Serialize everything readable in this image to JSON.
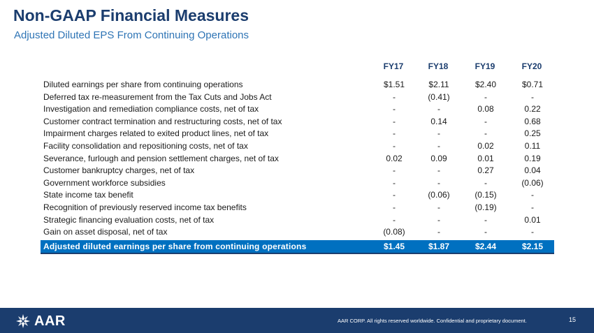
{
  "header": {
    "title": "Non-GAAP Financial Measures",
    "subtitle": "Adjusted Diluted EPS From Continuing Operations"
  },
  "table": {
    "columns": [
      "FY17",
      "FY18",
      "FY19",
      "FY20"
    ],
    "rows": [
      {
        "label": "Diluted earnings per share from continuing operations",
        "values": [
          "$1.51",
          "$2.11",
          "$2.40",
          "$0.71"
        ]
      },
      {
        "label": "Deferred tax re-measurement from the Tax Cuts and Jobs Act",
        "values": [
          "-",
          "(0.41)",
          "-",
          "-"
        ]
      },
      {
        "label": "Investigation and remediation compliance costs, net of tax",
        "values": [
          "-",
          "-",
          "0.08",
          "0.22"
        ]
      },
      {
        "label": "Customer contract termination and restructuring costs, net of tax",
        "values": [
          "-",
          "0.14",
          "-",
          "0.68"
        ]
      },
      {
        "label": "Impairment charges related to exited product lines, net of tax",
        "values": [
          "-",
          "-",
          "-",
          "0.25"
        ]
      },
      {
        "label": "Facility consolidation and repositioning costs, net of tax",
        "values": [
          "-",
          "-",
          "0.02",
          "0.11"
        ]
      },
      {
        "label": "Severance, furlough and pension settlement charges, net of tax",
        "values": [
          "0.02",
          "0.09",
          "0.01",
          "0.19"
        ]
      },
      {
        "label": "Customer bankruptcy charges, net of tax",
        "values": [
          "-",
          "-",
          "0.27",
          "0.04"
        ]
      },
      {
        "label": "Government workforce subsidies",
        "values": [
          "-",
          "-",
          "-",
          "(0.06)"
        ]
      },
      {
        "label": "State income tax benefit",
        "values": [
          "-",
          "(0.06)",
          "(0.15)",
          "-"
        ]
      },
      {
        "label": "Recognition of previously reserved income tax benefits",
        "values": [
          "-",
          "-",
          "(0.19)",
          "-"
        ]
      },
      {
        "label": "Strategic financing evaluation costs, net of tax",
        "values": [
          "-",
          "-",
          "-",
          "0.01"
        ]
      },
      {
        "label": "Gain on asset disposal, net of tax",
        "values": [
          "(0.08)",
          "-",
          "-",
          "-"
        ]
      }
    ],
    "total": {
      "label": "Adjusted diluted earnings per share from continuing operations",
      "values": [
        "$1.45",
        "$1.87",
        "$2.44",
        "$2.15"
      ]
    }
  },
  "footer": {
    "logo_text": "AAR",
    "copyright": "AAR CORP. All rights reserved worldwide. Confidential and proprietary document.",
    "page_number": "15"
  },
  "colors": {
    "title": "#1b3d6e",
    "subtitle": "#2e74b5",
    "total_band": "#0070c0",
    "footer_band": "#1b3d6e"
  },
  "icons": {
    "logo": "aar-star-logo-icon"
  }
}
